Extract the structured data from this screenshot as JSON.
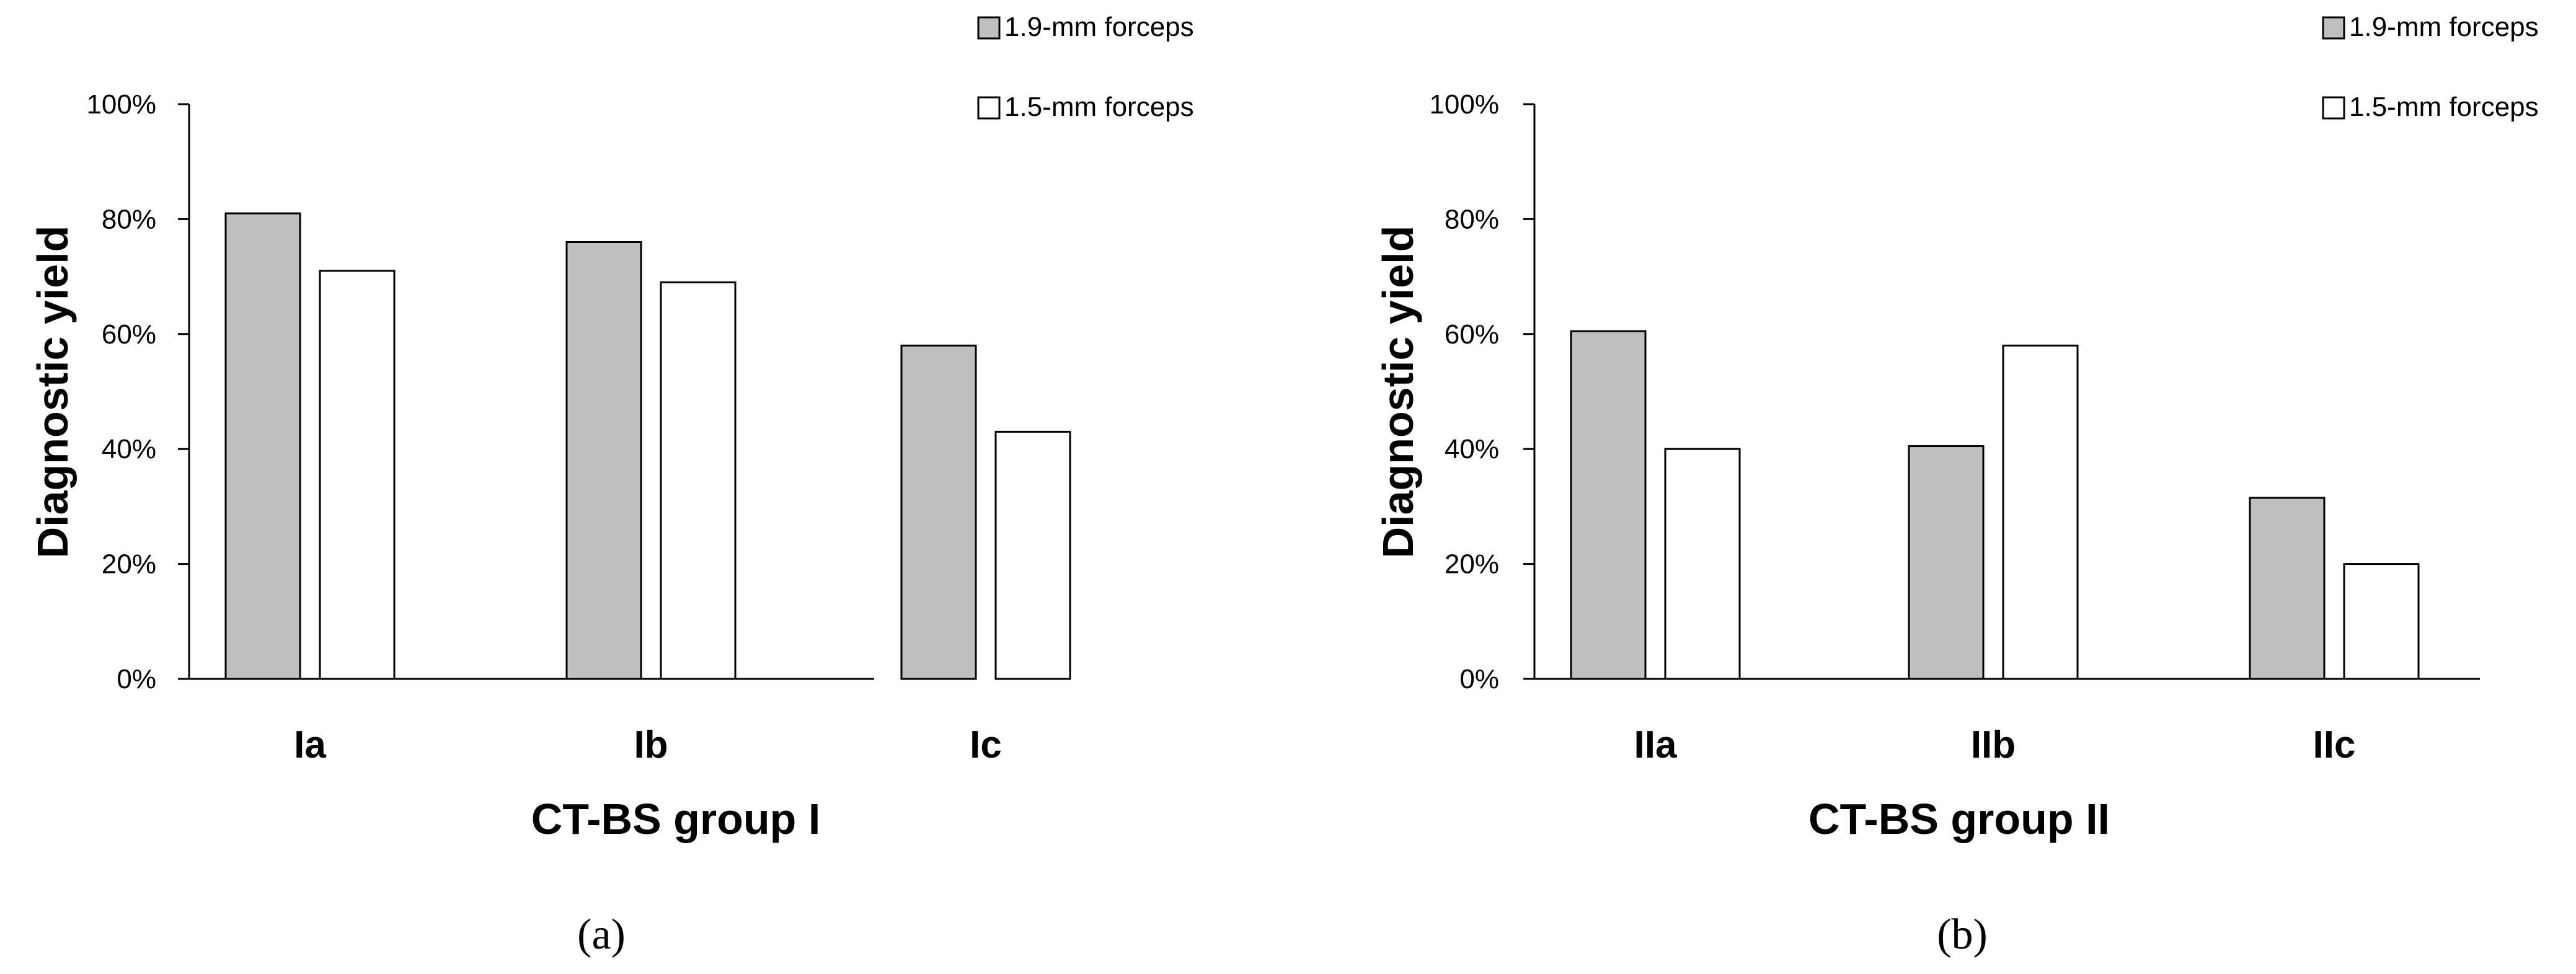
{
  "chart_data": [
    {
      "type": "bar",
      "panel_label": "(a)",
      "categories": [
        "Ia",
        "Ib",
        "Ic"
      ],
      "series": [
        {
          "name": "1.9-mm forceps",
          "values": [
            81,
            76,
            58
          ],
          "color": "#c0c0c0"
        },
        {
          "name": "1.5-mm forceps",
          "values": [
            71,
            69,
            43
          ],
          "color": "#ffffff"
        }
      ],
      "xlabel": "CT-BS group I",
      "ylabel": "Diagnostic yield",
      "ylim": [
        0,
        100
      ],
      "yticks": [
        "0%",
        "20%",
        "40%",
        "60%",
        "80%",
        "100%"
      ],
      "grid": false,
      "legend_position": "top-right"
    },
    {
      "type": "bar",
      "panel_label": "(b)",
      "categories": [
        "IIa",
        "IIb",
        "IIc"
      ],
      "series": [
        {
          "name": "1.9-mm forceps",
          "values": [
            60.5,
            40.5,
            31.5
          ],
          "color": "#c0c0c0"
        },
        {
          "name": "1.5-mm forceps",
          "values": [
            40,
            58,
            20
          ],
          "color": "#ffffff"
        }
      ],
      "xlabel": "CT-BS group II",
      "ylabel": "Diagnostic yield",
      "ylim": [
        0,
        100
      ],
      "yticks": [
        "0%",
        "20%",
        "40%",
        "60%",
        "80%",
        "100%"
      ],
      "grid": false,
      "legend_position": "top-right"
    }
  ]
}
